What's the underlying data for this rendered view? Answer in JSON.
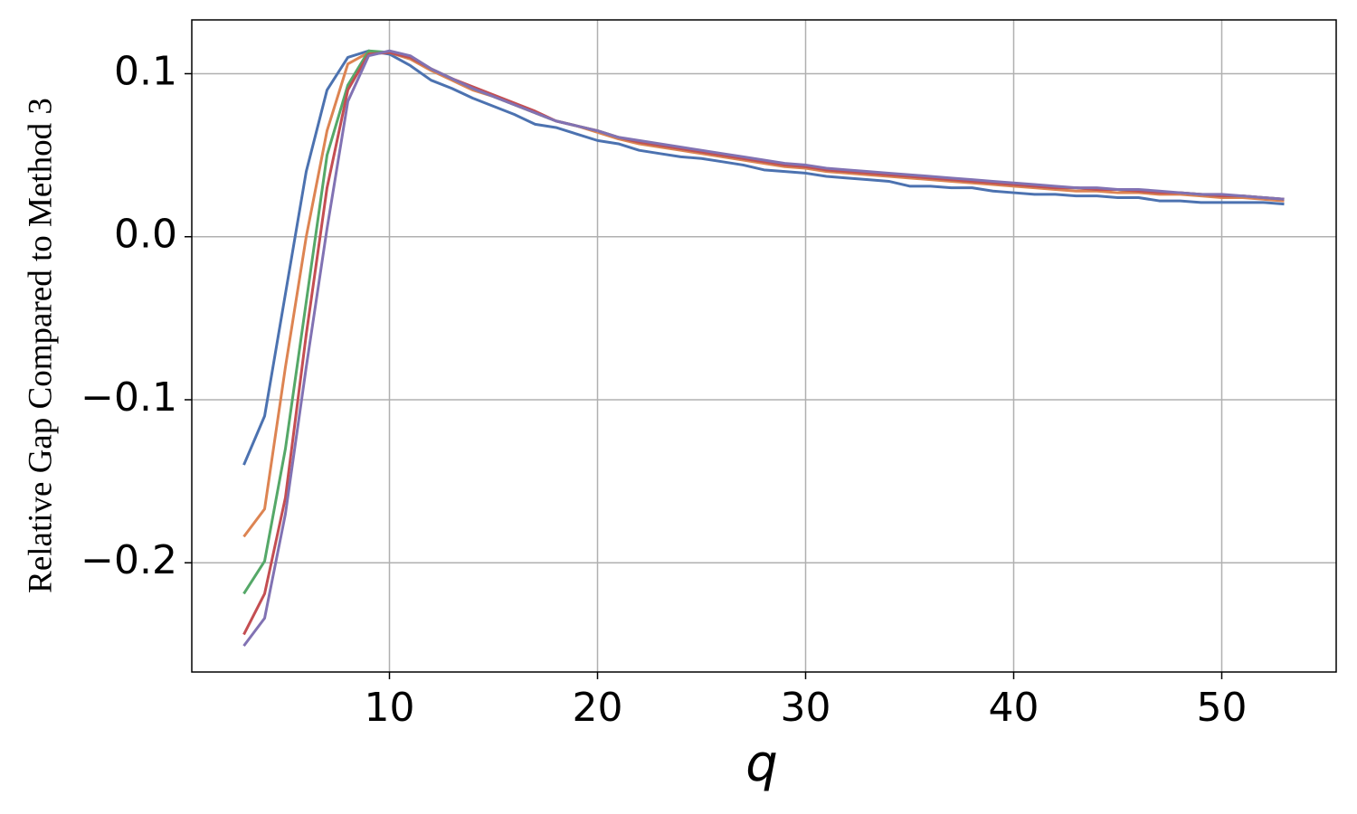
{
  "chart_data": {
    "type": "line",
    "xlabel": "q",
    "ylabel": "Relative Gap Compared to Method 3",
    "x": [
      3,
      4,
      5,
      6,
      7,
      8,
      9,
      10,
      11,
      12,
      13,
      14,
      15,
      16,
      17,
      18,
      19,
      20,
      21,
      22,
      23,
      24,
      25,
      26,
      27,
      28,
      29,
      30,
      31,
      32,
      33,
      34,
      35,
      36,
      37,
      38,
      39,
      40,
      41,
      42,
      43,
      44,
      45,
      46,
      47,
      48,
      49,
      50,
      51,
      52,
      53
    ],
    "series": [
      {
        "color": "#4c72b0",
        "values": [
          -0.14,
          -0.11,
          -0.035,
          0.04,
          0.09,
          0.11,
          0.114,
          0.112,
          0.105,
          0.096,
          0.091,
          0.085,
          0.08,
          0.075,
          0.069,
          0.067,
          0.063,
          0.059,
          0.057,
          0.053,
          0.051,
          0.049,
          0.048,
          0.046,
          0.044,
          0.041,
          0.04,
          0.039,
          0.037,
          0.036,
          0.035,
          0.034,
          0.031,
          0.031,
          0.03,
          0.03,
          0.028,
          0.027,
          0.026,
          0.026,
          0.025,
          0.025,
          0.024,
          0.024,
          0.022,
          0.022,
          0.021,
          0.021,
          0.021,
          0.021,
          0.02
        ]
      },
      {
        "color": "#dd8452",
        "values": [
          -0.184,
          -0.167,
          -0.08,
          0.0,
          0.065,
          0.106,
          0.113,
          0.113,
          0.109,
          0.102,
          0.096,
          0.09,
          0.086,
          0.081,
          0.076,
          0.071,
          0.068,
          0.064,
          0.06,
          0.057,
          0.055,
          0.053,
          0.051,
          0.049,
          0.047,
          0.045,
          0.043,
          0.042,
          0.04,
          0.039,
          0.038,
          0.037,
          0.036,
          0.035,
          0.034,
          0.033,
          0.032,
          0.031,
          0.03,
          0.029,
          0.028,
          0.028,
          0.027,
          0.027,
          0.026,
          0.026,
          0.025,
          0.024,
          0.024,
          0.023,
          0.022
        ]
      },
      {
        "color": "#55a868",
        "values": [
          -0.219,
          -0.199,
          -0.13,
          -0.04,
          0.05,
          0.093,
          0.114,
          0.113,
          0.11,
          0.103,
          0.097,
          0.091,
          0.086,
          0.081,
          0.076,
          0.071,
          0.068,
          0.065,
          0.061,
          0.058,
          0.056,
          0.054,
          0.052,
          0.05,
          0.048,
          0.046,
          0.044,
          0.043,
          0.041,
          0.04,
          0.039,
          0.038,
          0.037,
          0.036,
          0.035,
          0.034,
          0.033,
          0.032,
          0.031,
          0.03,
          0.03,
          0.029,
          0.029,
          0.028,
          0.027,
          0.027,
          0.026,
          0.025,
          0.025,
          0.024,
          0.023
        ]
      },
      {
        "color": "#c44e52",
        "values": [
          -0.244,
          -0.219,
          -0.16,
          -0.06,
          0.03,
          0.09,
          0.112,
          0.113,
          0.11,
          0.103,
          0.097,
          0.092,
          0.087,
          0.082,
          0.077,
          0.071,
          0.068,
          0.065,
          0.061,
          0.058,
          0.056,
          0.054,
          0.052,
          0.05,
          0.048,
          0.046,
          0.044,
          0.043,
          0.041,
          0.04,
          0.039,
          0.038,
          0.037,
          0.036,
          0.035,
          0.034,
          0.033,
          0.032,
          0.031,
          0.03,
          0.03,
          0.029,
          0.029,
          0.028,
          0.027,
          0.027,
          0.026,
          0.025,
          0.025,
          0.024,
          0.023
        ]
      },
      {
        "color": "#8172b3",
        "values": [
          -0.251,
          -0.234,
          -0.17,
          -0.08,
          0.005,
          0.083,
          0.111,
          0.114,
          0.111,
          0.103,
          0.097,
          0.091,
          0.086,
          0.081,
          0.076,
          0.071,
          0.068,
          0.065,
          0.061,
          0.059,
          0.057,
          0.055,
          0.053,
          0.051,
          0.049,
          0.047,
          0.045,
          0.044,
          0.042,
          0.041,
          0.04,
          0.039,
          0.038,
          0.037,
          0.036,
          0.035,
          0.034,
          0.033,
          0.032,
          0.031,
          0.03,
          0.03,
          0.029,
          0.029,
          0.028,
          0.027,
          0.026,
          0.026,
          0.025,
          0.024,
          0.023
        ]
      }
    ],
    "xlim": [
      0.5,
      55.5
    ],
    "ylim": [
      -0.267,
      0.133
    ],
    "xticks": [
      10,
      20,
      30,
      40,
      50
    ],
    "yticks": [
      {
        "value": -0.2,
        "label": "−0.2"
      },
      {
        "value": -0.1,
        "label": "−0.1"
      },
      {
        "value": 0,
        "label": "0.0"
      },
      0.1
    ],
    "grid": true
  }
}
